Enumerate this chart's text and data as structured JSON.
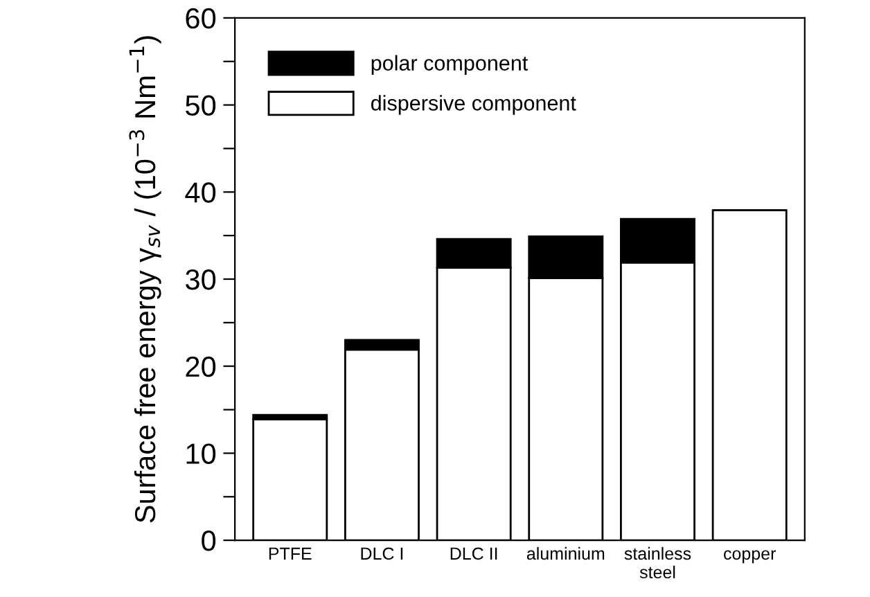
{
  "chart_data": {
    "type": "bar",
    "stacked": true,
    "ylabel": "Surface free energy γ$_{sv}$ / (10$^{−3}$ Nm$^{−1}$)",
    "categories": [
      "PTFE",
      "DLC I",
      "DLC II",
      "aluminium",
      "stainless\nsteel",
      "copper"
    ],
    "series": [
      {
        "name": "dispersive component",
        "color": "#ffffff",
        "values": [
          13.9,
          21.9,
          31.3,
          30.1,
          31.9,
          37.9
        ]
      },
      {
        "name": "polar component",
        "color": "#000000",
        "values": [
          0.5,
          1.1,
          3.3,
          4.8,
          5.0,
          0
        ]
      }
    ],
    "ylim": [
      0,
      60
    ],
    "yticks": [
      0,
      {
        "value": 5,
        "label": null
      },
      10,
      {
        "value": 15,
        "label": null
      },
      20,
      {
        "value": 25,
        "label": null
      },
      30,
      {
        "value": 35,
        "label": null
      },
      40,
      {
        "value": 45,
        "label": null
      },
      50,
      {
        "value": 55,
        "label": null
      },
      60
    ],
    "grid": false,
    "legend": "top left"
  }
}
